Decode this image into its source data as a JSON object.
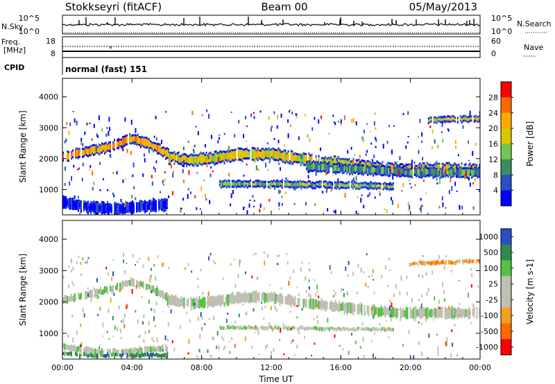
{
  "header": {
    "station": "Stokkseyri (fitACF)",
    "beam": "Beam 00",
    "date": "05/May/2013"
  },
  "status_panel": {
    "nsky_label": "N.Sky",
    "nsky_ticks": [
      "10^5",
      "10^0"
    ],
    "nsearch_label": "N.Search",
    "nsearch_ticks": [
      "10^5",
      "10^0"
    ],
    "freq_label_1": "Freq.",
    "freq_label_2": "[MHz]",
    "freq_ticks": [
      "18",
      "8"
    ],
    "nave_label": "Nave",
    "nave_ticks": [
      "60",
      "0"
    ],
    "cpid_label": "CPID",
    "cpid_text": "normal (fast) 151"
  },
  "chart_data": [
    {
      "type": "heatmap",
      "title": "",
      "xlabel": "Time UT",
      "ylabel": "Slant Range [km]",
      "colorbar_label": "Power [dB]",
      "colorbar_ticks": [
        "28",
        "24",
        "20",
        "16",
        "12",
        "8",
        "4"
      ],
      "colors": [
        "#ff0000",
        "#ff6a00",
        "#ffaa00",
        "#d8c800",
        "#6fc94c",
        "#3c8c62",
        "#2a4fc4",
        "#0000ff"
      ],
      "x_ticks": [
        "00:00",
        "04:00",
        "08:00",
        "12:00",
        "16:00",
        "20:00",
        "00:00"
      ],
      "y_ticks": [
        "4000",
        "3000",
        "2000",
        "1000"
      ],
      "xlim": [
        0,
        24
      ],
      "ylim": [
        180,
        4600
      ],
      "bands": [
        {
          "x": [
            0,
            1,
            2,
            3,
            4,
            5,
            6,
            7
          ],
          "y": [
            2050,
            2200,
            2300,
            2450,
            2650,
            2450,
            2150,
            1900
          ],
          "width": 200,
          "level": 2
        },
        {
          "x": [
            6,
            7.5,
            9,
            10.5,
            12,
            13.5,
            15,
            16.5,
            18,
            19.5,
            21,
            22.5,
            24
          ],
          "y": [
            2050,
            1950,
            2050,
            2150,
            2150,
            2000,
            1900,
            1800,
            1700,
            1650,
            1650,
            1650,
            1650
          ],
          "width": 260,
          "level": 3
        },
        {
          "x": [
            14,
            15.5,
            17,
            18.5,
            20,
            21.5,
            23,
            24
          ],
          "y": [
            1750,
            1700,
            1650,
            1600,
            1550,
            1550,
            1550,
            1550
          ],
          "width": 200,
          "level": 5
        },
        {
          "x": [
            9,
            11,
            13,
            15,
            17,
            19
          ],
          "y": [
            1180,
            1180,
            1170,
            1150,
            1130,
            1110
          ],
          "width": 100,
          "level": 4
        },
        {
          "x": [
            0,
            1,
            2,
            3,
            4,
            5,
            6
          ],
          "y": [
            600,
            480,
            400,
            380,
            420,
            480,
            520
          ],
          "width": 240,
          "level": 7
        },
        {
          "x": [
            21,
            22,
            23,
            24
          ],
          "y": [
            3250,
            3260,
            3280,
            3300
          ],
          "width": 80,
          "level": 3
        }
      ]
    },
    {
      "type": "heatmap",
      "title": "",
      "xlabel": "Time UT",
      "ylabel": "Slant Range [km]",
      "colorbar_label": "Velocity [m s-1]",
      "colorbar_ticks": [
        "1000",
        "500",
        "100",
        "25",
        "-25",
        "-100",
        "-500",
        "-1000"
      ],
      "colors": [
        "#2a4fc4",
        "#2f8a4f",
        "#55c244",
        "#bfbfb4",
        "#bfbfb4",
        "#f3a020",
        "#ff6a00",
        "#ff0000"
      ],
      "x_ticks": [
        "00:00",
        "04:00",
        "08:00",
        "12:00",
        "16:00",
        "20:00",
        "00:00"
      ],
      "y_ticks": [
        "4000",
        "3000",
        "2000",
        "1000"
      ],
      "xlim": [
        0,
        24
      ],
      "ylim": [
        180,
        4600
      ],
      "bands": [
        {
          "x": [
            0,
            1,
            2,
            3,
            4,
            5,
            6,
            7
          ],
          "y": [
            2050,
            2200,
            2300,
            2450,
            2650,
            2450,
            2150,
            1900
          ],
          "width": 220,
          "level": 3
        },
        {
          "x": [
            6,
            7.5,
            9,
            10.5,
            12,
            13.5,
            15,
            16.5,
            18,
            19.5,
            21,
            22.5,
            24
          ],
          "y": [
            2050,
            1950,
            2050,
            2150,
            2150,
            2000,
            1900,
            1800,
            1700,
            1650,
            1650,
            1650,
            1650
          ],
          "width": 320,
          "level": 3
        },
        {
          "x": [
            9,
            11,
            13,
            15,
            17,
            19
          ],
          "y": [
            1180,
            1180,
            1170,
            1150,
            1130,
            1110
          ],
          "width": 110,
          "level": 3
        },
        {
          "x": [
            0,
            1,
            2,
            3,
            4,
            5,
            6
          ],
          "y": [
            600,
            480,
            400,
            380,
            420,
            480,
            520
          ],
          "width": 200,
          "level": 3
        },
        {
          "x": [
            0,
            1,
            2,
            3,
            4,
            5,
            6
          ],
          "y": [
            380,
            320,
            300,
            300,
            300,
            300,
            300
          ],
          "width": 120,
          "level": 1
        },
        {
          "x": [
            20,
            21,
            22,
            23,
            24
          ],
          "y": [
            3200,
            3250,
            3260,
            3280,
            3300
          ],
          "width": 120,
          "level": 5
        }
      ]
    }
  ]
}
